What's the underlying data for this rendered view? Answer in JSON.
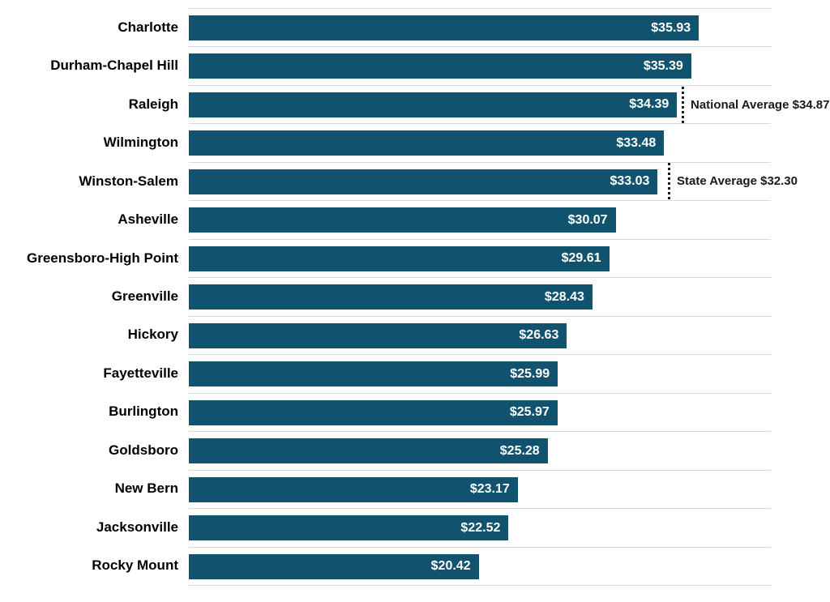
{
  "chart_data": {
    "type": "bar",
    "orientation": "horizontal",
    "title": "",
    "xlabel": "",
    "ylabel": "",
    "categories": [
      "Charlotte",
      "Durham-Chapel Hill",
      "Raleigh",
      "Wilmington",
      "Winston-Salem",
      "Asheville",
      "Greensboro-High Point",
      "Greenville",
      "Hickory",
      "Fayetteville",
      "Burlington",
      "Goldsboro",
      "New Bern",
      "Jacksonville",
      "Rocky Mount"
    ],
    "values": [
      35.93,
      35.39,
      34.39,
      33.48,
      33.03,
      30.07,
      29.61,
      28.43,
      26.63,
      25.99,
      25.97,
      25.28,
      23.17,
      22.52,
      20.42
    ],
    "value_labels": [
      "$35.93",
      "$35.39",
      "$34.39",
      "$33.48",
      "$33.03",
      "$30.07",
      "$29.61",
      "$28.43",
      "$26.63",
      "$25.99",
      "$25.97",
      "$25.28",
      "$23.17",
      "$22.52",
      "$20.42"
    ],
    "xlim": [
      0,
      41
    ],
    "grid": "horizontal row separators only",
    "legend": "none",
    "annotations": [
      {
        "label": "National Average $34.87",
        "value": 34.87,
        "anchor_category": "Raleigh",
        "line_style": "dotted-vertical"
      },
      {
        "label": "State Average $32.30",
        "value": 32.3,
        "anchor_category": "Winston-Salem",
        "line_style": "dotted-vertical"
      }
    ],
    "colors": {
      "bar": "#11536E",
      "value_text": "#FFFFFF",
      "category_text": "#000000",
      "gridline": "#D9D9D9",
      "annotation": "#1A1A1A",
      "background": "#FFFFFF"
    }
  }
}
